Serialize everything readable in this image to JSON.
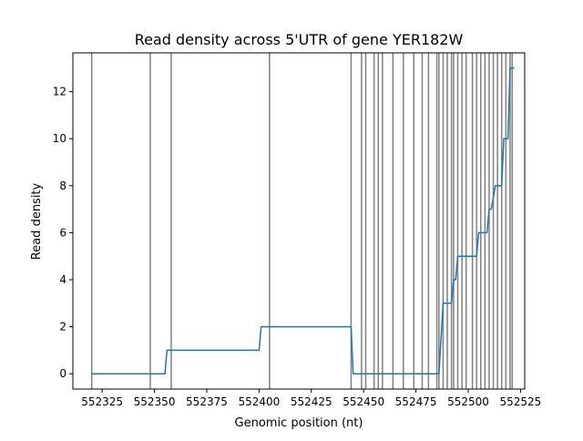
{
  "chart_data": {
    "type": "line",
    "title": "Read density across 5'UTR of gene YER182W",
    "xlabel": "Genomic position (nt)",
    "ylabel": "Read density",
    "xlim": [
      552311,
      552527
    ],
    "ylim": [
      -0.65,
      13.65
    ],
    "x_ticks": [
      552325,
      552350,
      552375,
      552400,
      552425,
      552450,
      552475,
      552500,
      552525
    ],
    "x_tick_labels": [
      "552325",
      "552350",
      "552375",
      "552400",
      "552425",
      "552450",
      "552475",
      "552500",
      "552525"
    ],
    "y_ticks": [
      0,
      2,
      4,
      6,
      8,
      10,
      12
    ],
    "y_tick_labels": [
      "0",
      "2",
      "4",
      "6",
      "8",
      "10",
      "12"
    ],
    "grid": false,
    "line_color": "#1f77b4",
    "vline_color": "#808080",
    "series": [
      {
        "x": [
          552320,
          552355,
          552356,
          552357,
          552400,
          552401,
          552444,
          552445,
          552486,
          552488,
          552491,
          552492,
          552493,
          552494,
          552495,
          552496,
          552497,
          552504,
          552505,
          552506,
          552509,
          552510,
          552511,
          552513,
          552514,
          552516,
          552517,
          552519,
          552520,
          552522
        ],
        "y": [
          0,
          0,
          1,
          1,
          1,
          2,
          2,
          0,
          0,
          3,
          3,
          3,
          4,
          4,
          5,
          5,
          5,
          5,
          6,
          6,
          6,
          7,
          7,
          8,
          8,
          8,
          10,
          10,
          13,
          13
        ]
      }
    ],
    "vlines": [
      552320,
      552348,
      552358,
      552405,
      552444,
      552449,
      552451,
      552455,
      552457,
      552459,
      552464,
      552469,
      552474,
      552478,
      552481,
      552485,
      552486,
      552488,
      552490,
      552492,
      552493,
      552495,
      552497,
      552499,
      552502,
      552504,
      552506,
      552508,
      552510,
      552512,
      552514,
      552516,
      552518,
      552520,
      552521
    ]
  }
}
